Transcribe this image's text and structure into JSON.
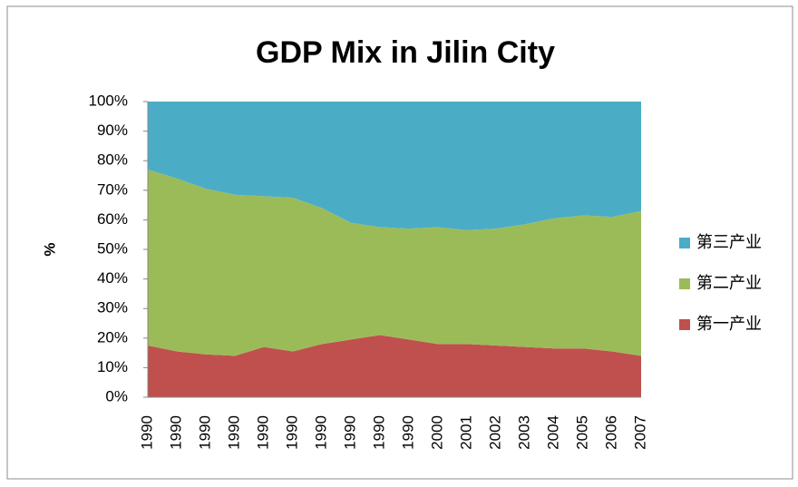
{
  "chart_data": {
    "type": "stacked_area",
    "title": "GDP Mix in Jilin City",
    "y_label": "%",
    "categories": [
      "1990",
      "1990",
      "1990",
      "1990",
      "1990",
      "1990",
      "1990",
      "1990",
      "1990",
      "1990",
      "2000",
      "2001",
      "2002",
      "2003",
      "2004",
      "2005",
      "2006",
      "2007"
    ],
    "series": [
      {
        "name": "第一产业",
        "color": "#c0504d",
        "values": [
          17.5,
          15.5,
          14.5,
          14,
          17,
          15.5,
          18,
          19.5,
          21,
          19.5,
          18,
          18,
          17.5,
          17,
          16.5,
          16.5,
          15.5,
          14
        ]
      },
      {
        "name": "第二产业",
        "color": "#9bbb59",
        "values": [
          59.5,
          58.5,
          56,
          54.5,
          51,
          52,
          46,
          39.5,
          36.5,
          37.5,
          39.5,
          38.5,
          39.5,
          41.5,
          44,
          45,
          45.5,
          49
        ]
      },
      {
        "name": "第三产业",
        "color": "#4bacc6",
        "values": [
          23,
          26,
          29.5,
          31.5,
          32,
          32.5,
          36,
          41,
          42.5,
          43,
          42.5,
          43.5,
          43,
          41.5,
          39.5,
          38.5,
          39,
          37
        ]
      }
    ],
    "ylim": [
      0,
      100
    ],
    "yticks": [
      {
        "value": 0,
        "label": "0%"
      },
      {
        "value": 10,
        "label": "10%"
      },
      {
        "value": 20,
        "label": "20%"
      },
      {
        "value": 30,
        "label": "30%"
      },
      {
        "value": 40,
        "label": "40%"
      },
      {
        "value": 50,
        "label": "50%"
      },
      {
        "value": 60,
        "label": "60%"
      },
      {
        "value": 70,
        "label": "70%"
      },
      {
        "value": 80,
        "label": "80%"
      },
      {
        "value": 90,
        "label": "90%"
      },
      {
        "value": 100,
        "label": "100%"
      }
    ],
    "legend": "right"
  }
}
